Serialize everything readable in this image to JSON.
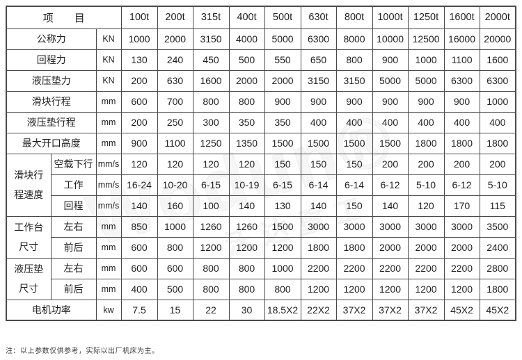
{
  "note": "注：以上参数仅供参考，实际以出厂机床为主。",
  "watermark": {
    "en": "Wodun®",
    "cn": "沃达重工"
  },
  "table": {
    "item_header": "项　　目",
    "tonnage_columns": [
      "100t",
      "200t",
      "315t",
      "400t",
      "500t",
      "630t",
      "800t",
      "1000t",
      "1250t",
      "1600t",
      "2000t"
    ],
    "rows": [
      {
        "kind": "simple",
        "label": "公称力",
        "unit": "KN",
        "values": [
          "1000",
          "2000",
          "3150",
          "4000",
          "5000",
          "6300",
          "8000",
          "10000",
          "12500",
          "16000",
          "20000"
        ]
      },
      {
        "kind": "simple",
        "label": "回程力",
        "unit": "KN",
        "values": [
          "130",
          "240",
          "450",
          "500",
          "550",
          "650",
          "800",
          "900",
          "1000",
          "1100",
          "1600"
        ]
      },
      {
        "kind": "simple",
        "label": "液压垫力",
        "unit": "KN",
        "values": [
          "200",
          "630",
          "1600",
          "2000",
          "2000",
          "3150",
          "3150",
          "5000",
          "5000",
          "6300",
          "6300"
        ]
      },
      {
        "kind": "simple",
        "label": "滑块行程",
        "unit": "mm",
        "values": [
          "600",
          "700",
          "800",
          "800",
          "900",
          "900",
          "900",
          "900",
          "900",
          "900",
          "1000"
        ]
      },
      {
        "kind": "simple",
        "label": "液压垫行程",
        "unit": "mm",
        "values": [
          "200",
          "250",
          "300",
          "350",
          "350",
          "400",
          "400",
          "400",
          "400",
          "400",
          "400"
        ]
      },
      {
        "kind": "simple",
        "label": "最大开口高度",
        "unit": "mm",
        "values": [
          "900",
          "1100",
          "1250",
          "1350",
          "1500",
          "1500",
          "1500",
          "1500",
          "1800",
          "1800",
          "1800"
        ]
      },
      {
        "kind": "group",
        "span": 3,
        "group_label_lines": [
          "滑块行",
          "程速度"
        ],
        "label": "空载下行",
        "unit": "mm/s",
        "values": [
          "120",
          "120",
          "120",
          "120",
          "150",
          "150",
          "150",
          "200",
          "200",
          "200",
          "200"
        ]
      },
      {
        "kind": "sub",
        "label": "工作",
        "unit": "mm/s",
        "values": [
          "16-24",
          "10-20",
          "6-15",
          "10-19",
          "6-15",
          "6-14",
          "6-14",
          "6-12",
          "5-10",
          "6-12",
          "5-10"
        ]
      },
      {
        "kind": "sub",
        "label": "回程",
        "unit": "mm/s",
        "values": [
          "140",
          "160",
          "100",
          "140",
          "130",
          "140",
          "150",
          "140",
          "120",
          "170",
          "115"
        ]
      },
      {
        "kind": "group",
        "span": 2,
        "group_label_lines": [
          "工作台",
          "尺寸"
        ],
        "label": "左右",
        "unit": "mm",
        "values": [
          "850",
          "1000",
          "1260",
          "1260",
          "1500",
          "3000",
          "3000",
          "3000",
          "3000",
          "3000",
          "3500"
        ]
      },
      {
        "kind": "sub",
        "label": "前后",
        "unit": "mm",
        "values": [
          "600",
          "800",
          "1200",
          "1200",
          "1200",
          "1800",
          "1800",
          "2000",
          "2000",
          "2000",
          "2400"
        ]
      },
      {
        "kind": "group",
        "span": 2,
        "group_label_lines": [
          "液压垫",
          "尺寸"
        ],
        "label": "左右",
        "unit": "mm",
        "values": [
          "600",
          "600",
          "800",
          "800",
          "1000",
          "2200",
          "2200",
          "2200",
          "2200",
          "2200",
          "2800"
        ]
      },
      {
        "kind": "sub",
        "label": "前后",
        "unit": "mm",
        "values": [
          "400",
          "500",
          "800",
          "800",
          "800",
          "1200",
          "1200",
          "1200",
          "1200",
          "1200",
          "1800"
        ]
      },
      {
        "kind": "simple",
        "label": "电机功率",
        "unit": "kw",
        "values": [
          "7.5",
          "15",
          "22",
          "30",
          "18.5X2",
          "22X2",
          "37X2",
          "37X2",
          "37X2",
          "45X2",
          "45X2"
        ]
      }
    ]
  }
}
